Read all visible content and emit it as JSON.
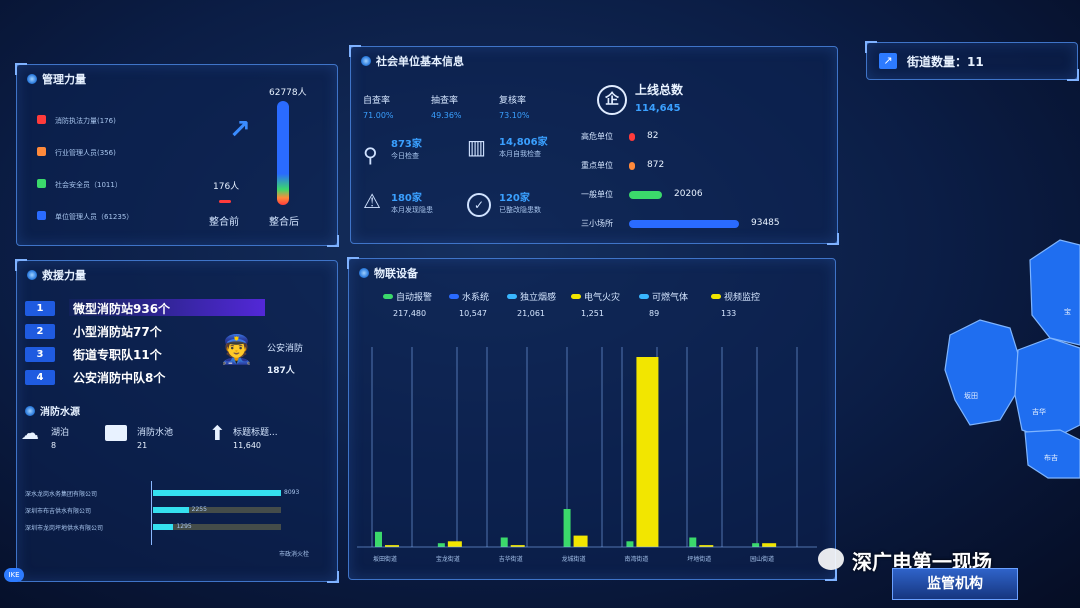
{
  "top_right": {
    "label": "街道数量：11"
  },
  "management": {
    "title": "管理力量",
    "legend": [
      {
        "label": "消防执法力量(176)",
        "color": "#ff3b3b"
      },
      {
        "label": "行业管理人员(356)",
        "color": "#ff8a3b"
      },
      {
        "label": "社会安全员（1011）",
        "color": "#3bd96b"
      },
      {
        "label": "单位管理人员（61235）",
        "color": "#2a6bff"
      }
    ],
    "before_value": "176人",
    "before_label": "整合前",
    "after_value": "62778人",
    "after_label": "整合后"
  },
  "social": {
    "title": "社会单位基本信息",
    "rates": [
      {
        "label": "自查率",
        "value": "71.00%"
      },
      {
        "label": "抽查率",
        "value": "49.36%"
      },
      {
        "label": "复核率",
        "value": "73.10%"
      }
    ],
    "stats": [
      {
        "value": "873家",
        "label": "今日检查"
      },
      {
        "value": "14,806家",
        "label": "本月自我检查"
      },
      {
        "value": "180家",
        "label": "本月发现隐患"
      },
      {
        "value": "120家",
        "label": "已整改隐患数"
      }
    ],
    "online_label": "上线总数",
    "online_value": "114,645",
    "units": [
      {
        "label": "高危单位",
        "value": "82",
        "color": "#ff3b3b",
        "level": 0.02
      },
      {
        "label": "重点单位",
        "value": "872",
        "color": "#ff8a3b",
        "level": 0.04
      },
      {
        "label": "一般单位",
        "value": "20206",
        "color": "#3bd96b",
        "level": 0.3
      },
      {
        "label": "三小场所",
        "value": "93485",
        "color": "#2a6bff",
        "level": 1.0
      }
    ]
  },
  "rescue": {
    "title": "救援力量",
    "ranks": [
      {
        "num": "1",
        "text": "微型消防站936个"
      },
      {
        "num": "2",
        "text": "小型消防站77个"
      },
      {
        "num": "3",
        "text": "街道专职队11个"
      },
      {
        "num": "4",
        "text": "公安消防中队8个"
      }
    ],
    "police_label": "公安消防",
    "police_value": "187人"
  },
  "water": {
    "title": "消防水源",
    "items": [
      {
        "label": "湖泊",
        "value": "8"
      },
      {
        "label": "消防水池",
        "value": "21"
      },
      {
        "label": "标题标题...",
        "value": "11,640"
      }
    ],
    "companies": [
      {
        "label": "深水龙岗水务集团有限公司",
        "value": 8093
      },
      {
        "label": "深圳市布吉供水有限公司",
        "value": 2255
      },
      {
        "label": "深圳市龙岗坪地供水有限公司",
        "value": 1295
      }
    ],
    "axis_label": "市政消火栓"
  },
  "iot": {
    "title": "物联设备",
    "legend": [
      {
        "label": "自动报警",
        "value": "217,480",
        "color": "#3bd96b"
      },
      {
        "label": "水系统",
        "value": "10,547",
        "color": "#2a6bff"
      },
      {
        "label": "独立烟感",
        "value": "21,061",
        "color": "#38b6ff"
      },
      {
        "label": "电气火灾",
        "value": "1,251",
        "color": "#f2e600"
      },
      {
        "label": "可燃气体",
        "value": "89",
        "color": "#38b6ff"
      },
      {
        "label": "视频监控",
        "value": "133",
        "color": "#f2e600"
      }
    ],
    "streets": [
      "坂田街道",
      "宝龙街道",
      "吉华街道",
      "龙城街道",
      "南湾街道",
      "坪地街道",
      "园山街道"
    ]
  },
  "chart_data": {
    "type": "bar",
    "categories": [
      "坂田街道",
      "宝龙街道",
      "吉华街道",
      "龙城街道",
      "南湾街道",
      "坪地街道",
      "园山街道"
    ],
    "series": [
      {
        "name": "自动报警",
        "values": [
          8,
          2,
          5,
          20,
          3,
          5,
          2
        ]
      },
      {
        "name": "电气火灾",
        "values": [
          1,
          3,
          1,
          6,
          100,
          1,
          2
        ]
      }
    ],
    "ylim": [
      0,
      100
    ]
  },
  "map": {
    "labels": [
      "坂田",
      "吉华",
      "布吉",
      "宝"
    ]
  },
  "bottom": {
    "watermark": "深广电第一现场",
    "button": "监管机构",
    "corner_badge": "IKE"
  }
}
